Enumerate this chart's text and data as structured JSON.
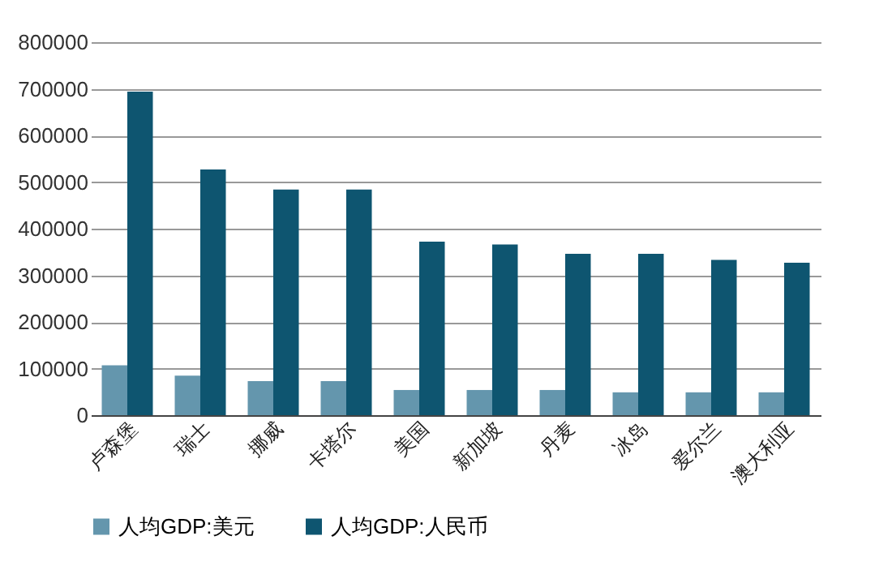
{
  "chart_data": {
    "type": "bar",
    "categories": [
      "卢森堡",
      "瑞士",
      "挪威",
      "卡塔尔",
      "美国",
      "新加坡",
      "丹麦",
      "冰岛",
      "爱尔兰",
      "澳大利亚"
    ],
    "series": [
      {
        "name": "人均GDP:美元",
        "color": "#6496ad",
        "values": [
          107000,
          85000,
          73000,
          73000,
          54000,
          54000,
          54000,
          49000,
          49000,
          49000
        ]
      },
      {
        "name": "人均GDP:人民币",
        "color": "#0e5570",
        "values": [
          694000,
          527000,
          484000,
          484000,
          372000,
          366000,
          346000,
          346000,
          333000,
          327000
        ]
      }
    ],
    "ylim": [
      0,
      800000
    ],
    "yticks": [
      0,
      100000,
      200000,
      300000,
      400000,
      500000,
      600000,
      700000,
      800000
    ],
    "grid": "y",
    "legend": "bottom"
  }
}
